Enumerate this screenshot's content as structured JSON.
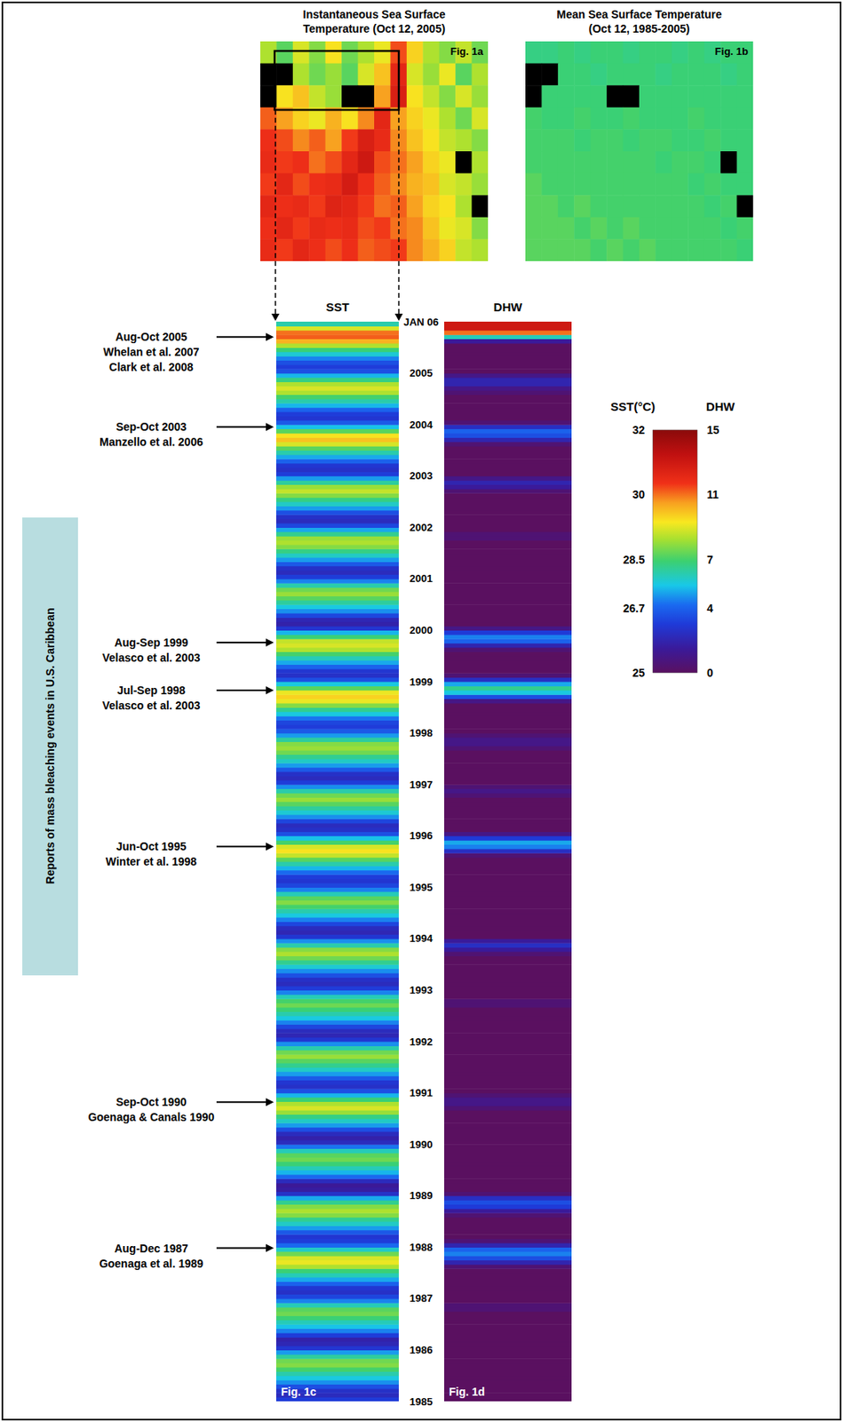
{
  "chart_data": [
    {
      "type": "map",
      "title": "Instantaneous Sea Surface Temperature (Oct 12, 2005)",
      "panel_label": "Fig. 1a",
      "tick_labels": false,
      "cells": [
        [
          29.0,
          28.6,
          29.2,
          28.8,
          29.4,
          28.7,
          29.0,
          29.3,
          30.2,
          29.5,
          29.0,
          28.8,
          29.1,
          28.7
        ],
        [
          null,
          null,
          29.0,
          28.7,
          28.9,
          28.6,
          29.2,
          29.6,
          30.6,
          29.2,
          28.9,
          29.3,
          28.6,
          29.0
        ],
        [
          null,
          29.4,
          29.6,
          29.1,
          28.9,
          null,
          null,
          29.8,
          30.8,
          29.4,
          29.1,
          28.8,
          29.2,
          28.9
        ],
        [
          30.1,
          29.8,
          29.5,
          29.3,
          29.7,
          29.4,
          29.9,
          30.6,
          29.8,
          29.5,
          29.3,
          29.0,
          28.7,
          29.2
        ],
        [
          30.4,
          30.2,
          29.9,
          30.1,
          29.8,
          30.3,
          30.8,
          30.5,
          29.9,
          29.6,
          29.4,
          29.1,
          29.0,
          28.8
        ],
        [
          30.5,
          30.3,
          30.4,
          30.0,
          30.2,
          30.6,
          31.0,
          30.2,
          30.0,
          29.8,
          29.5,
          29.3,
          null,
          29.0
        ],
        [
          30.3,
          30.6,
          30.2,
          30.4,
          30.5,
          30.9,
          30.4,
          30.1,
          29.9,
          29.7,
          29.6,
          29.2,
          29.1,
          28.9
        ],
        [
          30.6,
          30.4,
          30.5,
          30.3,
          30.7,
          30.6,
          30.3,
          30.0,
          30.1,
          29.8,
          29.5,
          29.4,
          29.0,
          null
        ],
        [
          30.4,
          30.6,
          30.3,
          30.5,
          30.4,
          30.5,
          30.2,
          30.3,
          30.0,
          29.9,
          29.6,
          29.3,
          29.2,
          28.8
        ],
        [
          30.5,
          30.3,
          30.6,
          30.4,
          30.2,
          30.4,
          30.1,
          30.2,
          30.3,
          29.9,
          29.7,
          29.5,
          29.1,
          29.0
        ]
      ]
    },
    {
      "type": "map",
      "title": "Mean Sea Surface Temperature (Oct 12, 1985-2005)",
      "panel_label": "Fig. 1b",
      "tick_labels": false,
      "cells": [
        [
          28.3,
          28.3,
          28.4,
          28.3,
          28.4,
          28.4,
          28.3,
          28.4,
          28.4,
          28.3,
          28.4,
          28.3,
          28.4,
          28.4
        ],
        [
          null,
          null,
          28.4,
          28.4,
          28.3,
          28.4,
          28.4,
          28.4,
          28.3,
          28.4,
          28.4,
          28.4,
          28.3,
          28.4
        ],
        [
          null,
          28.4,
          28.4,
          28.4,
          28.4,
          null,
          null,
          28.4,
          28.4,
          28.4,
          28.4,
          28.4,
          28.4,
          28.4
        ],
        [
          28.5,
          28.4,
          28.4,
          28.5,
          28.4,
          28.4,
          28.5,
          28.4,
          28.4,
          28.4,
          28.5,
          28.4,
          28.4,
          28.4
        ],
        [
          28.5,
          28.5,
          28.5,
          28.4,
          28.5,
          28.5,
          28.4,
          28.5,
          28.5,
          28.4,
          28.4,
          28.5,
          28.4,
          28.4
        ],
        [
          28.5,
          28.5,
          28.5,
          28.5,
          28.5,
          28.5,
          28.5,
          28.5,
          28.4,
          28.5,
          28.5,
          28.4,
          null,
          28.4
        ],
        [
          28.6,
          28.5,
          28.5,
          28.5,
          28.5,
          28.5,
          28.5,
          28.5,
          28.5,
          28.5,
          28.4,
          28.5,
          28.4,
          28.4
        ],
        [
          28.6,
          28.6,
          28.5,
          28.6,
          28.5,
          28.5,
          28.5,
          28.5,
          28.5,
          28.5,
          28.5,
          28.4,
          28.5,
          null
        ],
        [
          28.6,
          28.6,
          28.6,
          28.5,
          28.6,
          28.5,
          28.6,
          28.5,
          28.5,
          28.5,
          28.5,
          28.5,
          28.4,
          28.5
        ],
        [
          28.6,
          28.6,
          28.6,
          28.6,
          28.5,
          28.6,
          28.5,
          28.6,
          28.5,
          28.5,
          28.5,
          28.5,
          28.5,
          28.4
        ]
      ]
    },
    {
      "type": "heatmap",
      "title": "SST",
      "panel_label": "Fig. 1c",
      "tick_labels": "y",
      "ylim": [
        1985,
        2006
      ],
      "yticks": [
        1985,
        1986,
        1987,
        1988,
        1989,
        1990,
        1991,
        1992,
        1993,
        1994,
        1995,
        1996,
        1997,
        1998,
        1999,
        2000,
        2001,
        2002,
        2003,
        2004,
        2005,
        {
          "value": 2006,
          "label": "JAN 06"
        }
      ],
      "years": [
        1985,
        1986,
        1987,
        1988,
        1989,
        1990,
        1991,
        1992,
        1993,
        1994,
        1995,
        1996,
        1997,
        1998,
        1999,
        2000,
        2001,
        2002,
        2003,
        2004,
        2005
      ],
      "values": [
        [
          26.3,
          26.0,
          26.1,
          26.5,
          27.1,
          27.6,
          28.0,
          28.5,
          28.8,
          28.7,
          28.1,
          27.2
        ],
        [
          26.2,
          25.9,
          25.8,
          26.3,
          27.0,
          27.5,
          27.9,
          28.4,
          28.7,
          28.6,
          27.9,
          27.0
        ],
        [
          26.4,
          26.1,
          26.2,
          26.7,
          27.3,
          27.9,
          28.4,
          29.0,
          29.3,
          29.2,
          28.7,
          27.8
        ],
        [
          26.8,
          26.3,
          26.2,
          26.6,
          27.2,
          27.8,
          28.2,
          28.8,
          29.0,
          28.8,
          28.2,
          27.3
        ],
        [
          26.1,
          25.7,
          25.6,
          26.0,
          26.8,
          27.4,
          27.9,
          28.4,
          28.7,
          28.6,
          27.9,
          26.9
        ],
        [
          26.0,
          25.8,
          26.0,
          26.5,
          27.2,
          27.8,
          28.3,
          28.9,
          29.2,
          29.0,
          28.4,
          27.4
        ],
        [
          26.5,
          26.1,
          26.2,
          26.6,
          27.2,
          27.8,
          28.2,
          28.6,
          28.9,
          28.7,
          28.0,
          27.1
        ],
        [
          26.2,
          25.9,
          26.0,
          26.4,
          27.0,
          27.6,
          28.0,
          28.4,
          28.7,
          28.5,
          27.9,
          27.0
        ],
        [
          26.3,
          26.0,
          26.1,
          26.5,
          27.1,
          27.7,
          28.2,
          28.7,
          29.0,
          28.8,
          28.0,
          27.1
        ],
        [
          26.2,
          25.9,
          26.0,
          26.4,
          27.0,
          27.6,
          28.0,
          28.5,
          28.8,
          28.6,
          27.9,
          27.0
        ],
        [
          26.4,
          26.2,
          26.3,
          26.8,
          27.4,
          28.0,
          28.6,
          29.1,
          29.4,
          29.2,
          28.5,
          27.5
        ],
        [
          26.5,
          26.1,
          26.0,
          26.4,
          27.1,
          27.7,
          28.1,
          28.6,
          28.9,
          28.7,
          28.0,
          27.1
        ],
        [
          26.3,
          26.0,
          26.1,
          26.6,
          27.2,
          27.8,
          28.2,
          28.7,
          28.9,
          28.8,
          28.1,
          27.2
        ],
        [
          26.6,
          26.3,
          26.4,
          26.9,
          27.6,
          28.2,
          28.8,
          29.3,
          29.5,
          29.3,
          28.6,
          27.6
        ],
        [
          26.5,
          26.1,
          26.2,
          26.7,
          27.3,
          27.9,
          28.5,
          29.0,
          29.2,
          29.1,
          28.4,
          27.4
        ],
        [
          26.2,
          25.8,
          25.9,
          26.4,
          27.1,
          27.6,
          28.1,
          28.6,
          28.9,
          28.7,
          28.0,
          27.0
        ],
        [
          26.3,
          26.0,
          26.1,
          26.6,
          27.2,
          27.8,
          28.3,
          28.8,
          29.0,
          28.9,
          28.2,
          27.3
        ],
        [
          26.4,
          26.0,
          26.1,
          26.5,
          27.2,
          27.8,
          28.3,
          28.8,
          29.1,
          28.9,
          28.1,
          27.2
        ],
        [
          26.3,
          26.1,
          26.2,
          26.7,
          27.3,
          28.0,
          28.6,
          29.2,
          29.6,
          29.4,
          28.6,
          27.5
        ],
        [
          26.6,
          26.2,
          26.3,
          26.7,
          27.4,
          28.0,
          28.5,
          29.0,
          29.2,
          29.0,
          28.3,
          27.4
        ],
        [
          26.5,
          26.3,
          26.5,
          27.0,
          27.7,
          28.4,
          29.0,
          29.7,
          30.1,
          30.0,
          29.2,
          28.0
        ]
      ]
    },
    {
      "type": "heatmap",
      "title": "DHW",
      "panel_label": "Fig. 1d",
      "tick_labels": false,
      "ylim": [
        1985,
        2006
      ],
      "years": [
        1985,
        1986,
        1987,
        1988,
        1989,
        1990,
        1991,
        1992,
        1993,
        1994,
        1995,
        1996,
        1997,
        1998,
        1999,
        2000,
        2001,
        2002,
        2003,
        2004,
        2005
      ],
      "values": [
        [
          0,
          0,
          0,
          0,
          0,
          0,
          0,
          0,
          0,
          0,
          0,
          0
        ],
        [
          0,
          0,
          0,
          0,
          0,
          0,
          0,
          0,
          0,
          0.5,
          0.5,
          0
        ],
        [
          0,
          0,
          0,
          0,
          0,
          0,
          0,
          0.5,
          2,
          3.5,
          4.5,
          4
        ],
        [
          2,
          0.5,
          0,
          0,
          0,
          0,
          0,
          0.5,
          1.5,
          3,
          3.5,
          2.5
        ],
        [
          0.5,
          0,
          0,
          0,
          0,
          0,
          0,
          0,
          0,
          0,
          0,
          0
        ],
        [
          0,
          0,
          0,
          0,
          0,
          0,
          0,
          0,
          0.5,
          1,
          1,
          0.5
        ],
        [
          0,
          0,
          0,
          0,
          0,
          0,
          0,
          0,
          0,
          0,
          0,
          0
        ],
        [
          0,
          0,
          0,
          0,
          0,
          0,
          0,
          0,
          0.5,
          0.5,
          0,
          0
        ],
        [
          0,
          0,
          0,
          0,
          0,
          0,
          0,
          0,
          0.5,
          1.5,
          2.5,
          1.5
        ],
        [
          0,
          0,
          0,
          0,
          0,
          0,
          0,
          0,
          0,
          0,
          0,
          0
        ],
        [
          0,
          0,
          0,
          0,
          0,
          0,
          0,
          0.5,
          2.5,
          4.5,
          5,
          3
        ],
        [
          1,
          0,
          0,
          0,
          0,
          0,
          0,
          0,
          0,
          0.5,
          1,
          0.5
        ],
        [
          0,
          0,
          0,
          0,
          0,
          0,
          0,
          0,
          0.5,
          1,
          1,
          0.5
        ],
        [
          0,
          0,
          0,
          0,
          0,
          0,
          0,
          1,
          3.5,
          5.5,
          6.5,
          5
        ],
        [
          2.5,
          0.5,
          0,
          0,
          0,
          0,
          0,
          0.5,
          2,
          4,
          4.5,
          3
        ],
        [
          1,
          0,
          0,
          0,
          0,
          0,
          0,
          0,
          0,
          0,
          0,
          0
        ],
        [
          0,
          0,
          0,
          0,
          0,
          0,
          0,
          0,
          0,
          0.5,
          0.5,
          0
        ],
        [
          0,
          0,
          0,
          0,
          0,
          0,
          0,
          0,
          0.5,
          1.5,
          2,
          1
        ],
        [
          0,
          0,
          0,
          0,
          0,
          0,
          0,
          0.5,
          2,
          3.5,
          4,
          2.5
        ],
        [
          0.5,
          0,
          0,
          0,
          0,
          0,
          0,
          0.5,
          1,
          2,
          2,
          1
        ],
        [
          0,
          0,
          0,
          0,
          0,
          0,
          0,
          1.5,
          6,
          11,
          13,
          13
        ]
      ]
    }
  ],
  "colorbar": {
    "sst_title": "SST(°C)",
    "dhw_title": "DHW",
    "sst_range": [
      25,
      32
    ],
    "sst_ticks": [
      25,
      26.7,
      28.5,
      30,
      32
    ],
    "dhw_range": [
      0,
      15
    ],
    "dhw_ticks": [
      0,
      4,
      7,
      11,
      15
    ]
  },
  "bleaching_reports": {
    "title": "Reports of mass bleaching events in U.S. Caribbean",
    "events": [
      {
        "period": "Aug-Oct 2005",
        "sources": [
          "Whelan et al. 2007",
          "Clark et al. 2008"
        ],
        "time": 2005.7
      },
      {
        "period": "Sep-Oct 2003",
        "sources": [
          "Manzello et al. 2006"
        ],
        "time": 2003.95
      },
      {
        "period": "Aug-Sep 1999",
        "sources": [
          "Velasco et al. 2003"
        ],
        "time": 1999.76
      },
      {
        "period": "Jul-Sep 1998",
        "sources": [
          "Velasco et al. 2003"
        ],
        "time": 1998.83
      },
      {
        "period": "Jun-Oct 1995",
        "sources": [
          "Winter et al. 1998"
        ],
        "time": 1995.79
      },
      {
        "period": "Sep-Oct 1990",
        "sources": [
          "Goenaga & Canals 1990"
        ],
        "time": 1990.82
      },
      {
        "period": "Aug-Dec 1987",
        "sources": [
          "Goenaga et al. 1989"
        ],
        "time": 1987.98
      }
    ]
  }
}
